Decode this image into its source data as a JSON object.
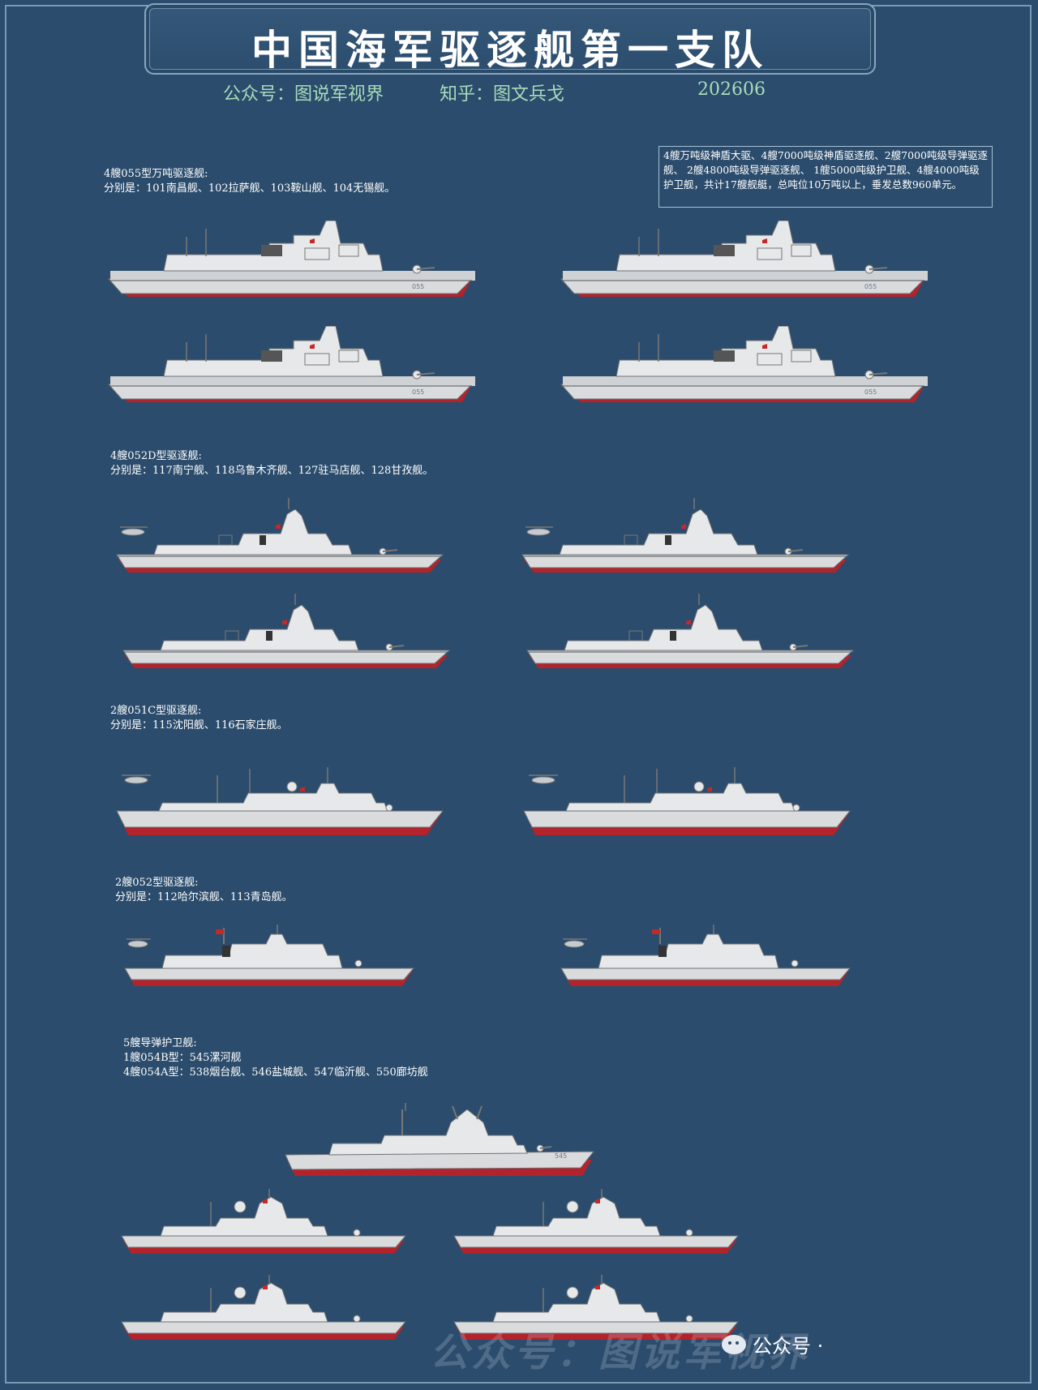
{
  "header": {
    "title": "中国海军驱逐舰第一支队",
    "account_left": "公众号：图说军视界",
    "account_right": "知乎：图文兵戈",
    "date": "202606"
  },
  "summary_note": "4艘万吨级神盾大驱、4艘7000吨级神盾驱逐舰、2艘7000吨级导弹驱逐舰、 2艘4800吨级导弹驱逐舰、 1艘5000吨级护卫舰、4艘4000吨级护卫舰，共计17艘舰艇，总吨位10万吨以上，垂发总数960单元。",
  "sections": {
    "type055": {
      "line1": "4艘055型万吨驱逐舰:",
      "line2": "分别是：101南昌舰、102拉萨舰、103鞍山舰、104无锡舰。"
    },
    "type052d": {
      "line1": "4艘052D型驱逐舰:",
      "line2": "分别是：117南宁舰、118乌鲁木齐舰、127驻马店舰、128甘孜舰。"
    },
    "type051c": {
      "line1": "2艘051C型驱逐舰:",
      "line2": "分别是：115沈阳舰、116石家庄舰。"
    },
    "type052": {
      "line1": "2艘052型驱逐舰:",
      "line2": "分别是：112哈尔滨舰、113青岛舰。"
    },
    "frigates": {
      "line1": "5艘导弹护卫舰:",
      "line2": "1艘054B型：545漯河舰",
      "line3": "4艘054A型：538烟台舰、546盐城舰、547临沂舰、550廊坊舰"
    }
  },
  "hull_numbers": {
    "type055": "055",
    "type054b": "545"
  },
  "watermark": {
    "text": "公众号：图说军视界",
    "badge": "公众号 ·"
  },
  "colors": {
    "background": "#2b4c6c",
    "subtitle": "#a8dcbb",
    "hull_grey": "#d9dbdd",
    "boot_red": "#b3232b"
  }
}
